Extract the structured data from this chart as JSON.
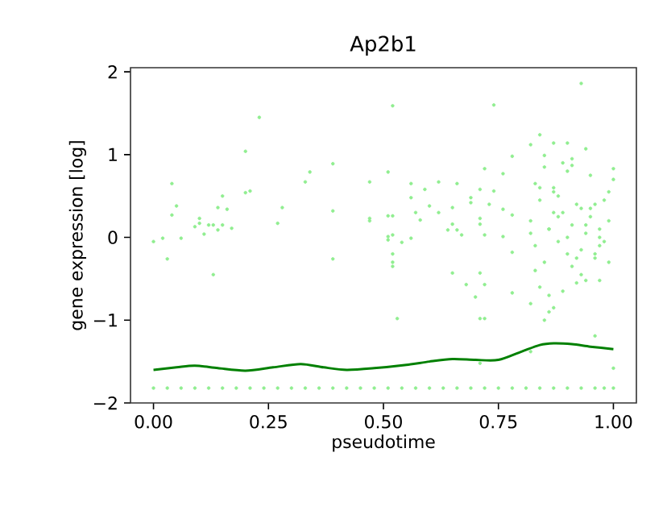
{
  "chart_data": {
    "type": "scatter",
    "title": "Ap2b1",
    "xlabel": "pseudotime",
    "ylabel": "gene expression [log]",
    "xlim": [
      -0.05,
      1.05
    ],
    "ylim": [
      -2,
      2.05
    ],
    "xticks": [
      {
        "value": 0,
        "label": "0.00"
      },
      {
        "value": 0.25,
        "label": "0.25"
      },
      {
        "value": 0.5,
        "label": "0.50"
      },
      {
        "value": 0.75,
        "label": "0.75"
      },
      {
        "value": 1,
        "label": "1.00"
      }
    ],
    "yticks": [
      {
        "value": -2,
        "label": "−2"
      },
      {
        "value": -1,
        "label": "−1"
      },
      0,
      1,
      2
    ],
    "marker": "circle",
    "series": [
      {
        "type": "scatter",
        "color": "#90ee90",
        "x": [
          0.0,
          0.02,
          0.03,
          0.04,
          0.04,
          0.05,
          0.06,
          0.09,
          0.1,
          0.1,
          0.11,
          0.12,
          0.13,
          0.13,
          0.14,
          0.14,
          0.15,
          0.15,
          0.16,
          0.17,
          0.2,
          0.2,
          0.21,
          0.23,
          0.27,
          0.28,
          0.33,
          0.34,
          0.39,
          0.39,
          0.39,
          0.47,
          0.47,
          0.47,
          0.51,
          0.51,
          0.51,
          0.51,
          0.52,
          0.52,
          0.52,
          0.52,
          0.52,
          0.52,
          0.53,
          0.56,
          0.56,
          0.57,
          0.59,
          0.58,
          0.56,
          0.54,
          0.6,
          0.62,
          0.62,
          0.66,
          0.65,
          0.64,
          0.65,
          0.66,
          0.67,
          0.65,
          0.68,
          0.69,
          0.69,
          0.71,
          0.72,
          0.73,
          0.74,
          0.71,
          0.71,
          0.72,
          0.71,
          0.72,
          0.7,
          0.71,
          0.72,
          0.71,
          0.76,
          0.76,
          0.76,
          0.78,
          0.78,
          0.78,
          0.78,
          0.74,
          0.93,
          0.82,
          0.84,
          0.87,
          0.9,
          0.94,
          0.85,
          0.91,
          1.0,
          0.96,
          0.82,
          0.85,
          0.87,
          0.82,
          0.94,
          0.97,
          1.0,
          0.82,
          0.83,
          0.84,
          0.85,
          0.86,
          0.87,
          0.88,
          0.89,
          0.9,
          0.91,
          0.92,
          0.93,
          0.94,
          0.95,
          0.96,
          0.97,
          0.98,
          0.99,
          1.0,
          0.83,
          0.85,
          0.86,
          0.88,
          0.9,
          0.92,
          0.93,
          0.95,
          0.97,
          0.99,
          0.82,
          0.84,
          0.87,
          0.89,
          0.91,
          0.94,
          0.96,
          0.98,
          0.83,
          0.86,
          0.88,
          0.9,
          0.93,
          0.95,
          0.97,
          0.99,
          0.84,
          0.86,
          0.87,
          0.89,
          0.91,
          0.92,
          0.96,
          0.98,
          0.0,
          0.03,
          0.06,
          0.09,
          0.12,
          0.15,
          0.18,
          0.21,
          0.24,
          0.27,
          0.3,
          0.33,
          0.36,
          0.39,
          0.42,
          0.45,
          0.48,
          0.51,
          0.54,
          0.57,
          0.6,
          0.63,
          0.66,
          0.69,
          0.72,
          0.75,
          0.78,
          0.81,
          0.84,
          0.87,
          0.9,
          0.93,
          0.96,
          1.0
        ],
        "values": [
          -0.05,
          -0.01,
          -0.26,
          0.65,
          0.27,
          0.38,
          -0.01,
          0.13,
          0.23,
          0.17,
          0.04,
          0.15,
          -0.45,
          0.15,
          0.09,
          0.36,
          0.5,
          0.15,
          0.34,
          0.11,
          0.54,
          1.04,
          0.56,
          1.45,
          0.17,
          0.36,
          0.67,
          0.79,
          -0.26,
          0.89,
          0.32,
          0.23,
          0.2,
          0.67,
          0.01,
          -0.03,
          0.79,
          0.26,
          -0.3,
          -0.35,
          0.03,
          -0.2,
          0.26,
          1.59,
          -0.98,
          0.65,
          0.48,
          0.3,
          0.58,
          0.21,
          -0.01,
          -0.06,
          0.38,
          0.67,
          0.3,
          0.65,
          0.36,
          0.09,
          0.16,
          0.09,
          0.03,
          -0.43,
          -0.57,
          0.42,
          0.48,
          0.58,
          0.83,
          0.4,
          0.56,
          0.23,
          0.16,
          0.03,
          -0.43,
          -0.57,
          -0.72,
          -0.98,
          -0.98,
          -1.52,
          0.77,
          0.34,
          0.01,
          0.98,
          0.27,
          -0.67,
          -0.18,
          1.6,
          1.86,
          1.12,
          1.24,
          1.14,
          1.14,
          1.07,
          0.99,
          0.87,
          0.83,
          -1.19,
          -1.38,
          -1.0,
          -0.85,
          -0.8,
          -0.52,
          -0.52,
          -1.58,
          0.2,
          -0.1,
          0.45,
          -0.3,
          0.1,
          0.6,
          -0.05,
          0.3,
          -0.2,
          0.15,
          0.4,
          -0.15,
          0.05,
          0.25,
          -0.25,
          0.1,
          -0.05,
          0.2,
          0.7,
          -0.4,
          0.85,
          -0.7,
          0.5,
          0.0,
          -0.55,
          0.35,
          0.75,
          -0.1,
          0.55,
          0.05,
          -0.6,
          0.3,
          0.9,
          -0.35,
          0.15,
          -0.2,
          0.45,
          0.65,
          -0.9,
          0.25,
          0.8,
          -0.45,
          0.35,
          0.0,
          -0.3,
          0.6,
          0.1,
          0.55,
          -0.65,
          0.95,
          -0.25,
          0.4,
          -1.82,
          -1.82,
          -1.82,
          -1.82,
          -1.82,
          -1.82,
          -1.82,
          -1.82,
          -1.82,
          -1.82,
          -1.82,
          -1.82,
          -1.82,
          -1.82,
          -1.82,
          -1.82,
          -1.82,
          -1.82,
          -1.82,
          -1.82,
          -1.82,
          -1.82,
          -1.82,
          -1.82,
          -1.82,
          -1.82,
          -1.82,
          -1.82,
          -1.82,
          -1.82,
          -1.82,
          -1.82,
          -1.82,
          -1.82,
          -1.82
        ]
      },
      {
        "type": "line",
        "color": "#008000",
        "marker": "none",
        "x": [
          0.0,
          0.05,
          0.09,
          0.14,
          0.2,
          0.26,
          0.32,
          0.37,
          0.42,
          0.48,
          0.55,
          0.6,
          0.65,
          0.7,
          0.75,
          0.8,
          0.84,
          0.87,
          0.91,
          0.95,
          1.0
        ],
        "values": [
          -1.6,
          -1.57,
          -1.55,
          -1.58,
          -1.61,
          -1.57,
          -1.53,
          -1.57,
          -1.6,
          -1.58,
          -1.54,
          -1.5,
          -1.47,
          -1.48,
          -1.48,
          -1.38,
          -1.3,
          -1.28,
          -1.29,
          -1.32,
          -1.35
        ]
      }
    ]
  }
}
